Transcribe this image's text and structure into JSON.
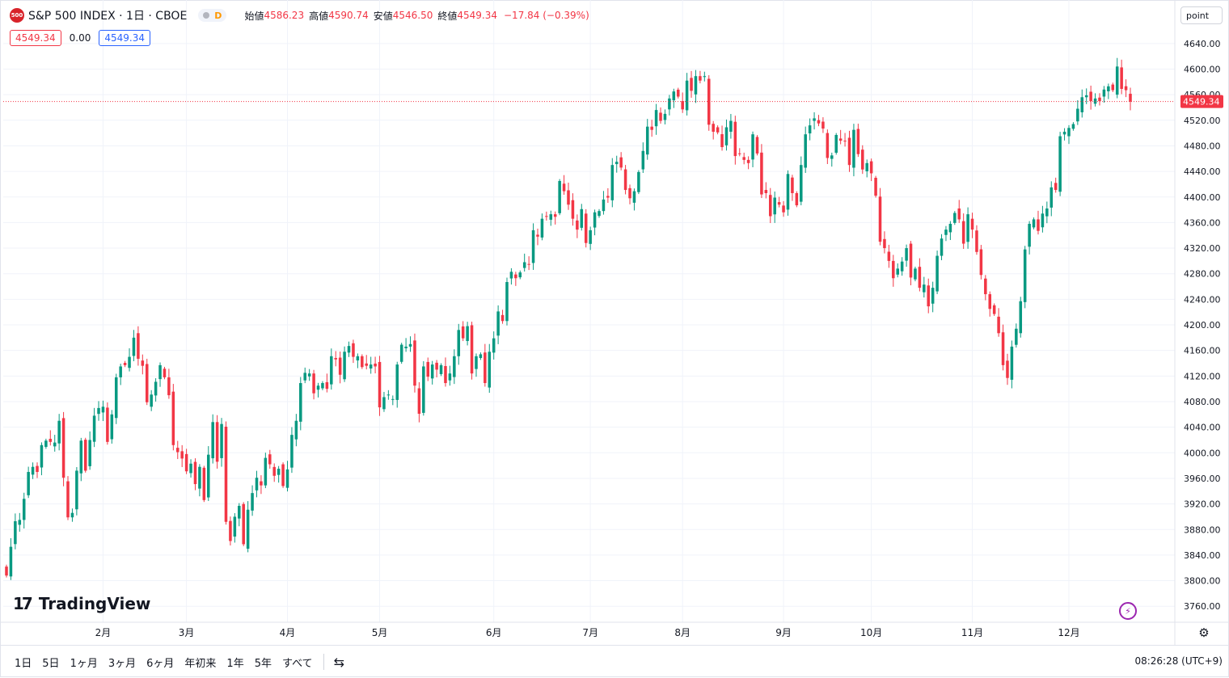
{
  "header": {
    "symbol_logo": "500",
    "symbol": "S&P 500 INDEX · 1日 · CBOE",
    "interval_badge": "D",
    "ohlc": [
      {
        "label": "始値",
        "value": "4586.23"
      },
      {
        "label": "高値",
        "value": "4590.74"
      },
      {
        "label": "安値",
        "value": "4546.50"
      },
      {
        "label": "終値",
        "value": "4549.34"
      }
    ],
    "change": "−17.84 (−0.39%)"
  },
  "price_row": {
    "bid": "4549.34",
    "spread": "0.00",
    "ask": "4549.34"
  },
  "scale_button": "point",
  "brand": "TradingView",
  "last_price_label": "4549.34",
  "bottom": {
    "ranges": [
      "1日",
      "5日",
      "1ヶ月",
      "3ヶ月",
      "6ヶ月",
      "年初来",
      "1年",
      "5年",
      "すべて"
    ],
    "clock": "08:26:28 (UTC+9)"
  },
  "colors": {
    "up": "#089981",
    "down": "#f23645",
    "grid": "#f0f3fa",
    "last_line": "#f23645"
  },
  "icons": {
    "bolt": "lightning-icon",
    "gear": "settings-icon",
    "calendar": "date-range-icon"
  },
  "chart_data": {
    "type": "candlestick",
    "x_axis_labels": [
      "2月",
      "3月",
      "4月",
      "5月",
      "6月",
      "7月",
      "8月",
      "9月",
      "10月",
      "11月",
      "12月"
    ],
    "y_ticks": [
      3760,
      3800,
      3840,
      3880,
      3920,
      3960,
      4000,
      4040,
      4080,
      4120,
      4160,
      4200,
      4240,
      4280,
      4320,
      4360,
      4400,
      4440,
      4480,
      4520,
      4560,
      4600,
      4640
    ],
    "ylim": [
      3735,
      4660
    ],
    "last_price": 4549.34,
    "closes": [
      3808,
      3853,
      3893,
      3895,
      3928,
      3970,
      3978,
      3970,
      4012,
      4019,
      4017,
      4016,
      4050,
      3961,
      3899,
      3906,
      3972,
      4019,
      3972,
      4020,
      4058,
      4070,
      4072,
      4017,
      4060,
      4118,
      4135,
      4137,
      4150,
      4180,
      4147,
      4136,
      4079,
      4091,
      4111,
      4137,
      4118,
      4090,
      4012,
      4001,
      3991,
      3971,
      3983,
      3951,
      3978,
      3926,
      3997,
      4048,
      3986,
      4045,
      3892,
      3862,
      3900,
      3917,
      3857,
      3911,
      3937,
      3961,
      3949,
      3992,
      3982,
      3964,
      3975,
      3948,
      3974,
      4028,
      4050,
      4109,
      4125,
      4124,
      4093,
      4105,
      4109,
      4100,
      4151,
      4146,
      4122,
      4158,
      4167,
      4150,
      4151,
      4134,
      4136,
      4138,
      4135,
      4071,
      4087,
      4091,
      4084,
      4138,
      4169,
      4166,
      4170,
      4105,
      4061,
      4135,
      4119,
      4138,
      4130,
      4137,
      4109,
      4124,
      4151,
      4192,
      4179,
      4198,
      4124,
      4151,
      4154,
      4109,
      4158,
      4179,
      4221,
      4206,
      4267,
      4283,
      4273,
      4282,
      4298,
      4294,
      4348,
      4338,
      4366,
      4370,
      4373,
      4369,
      4425,
      4409,
      4388,
      4366,
      4349,
      4381,
      4328,
      4348,
      4376,
      4378,
      4396,
      4399,
      4450,
      4455,
      4446,
      4411,
      4398,
      4409,
      4439,
      4472,
      4510,
      4505,
      4536,
      4519,
      4530,
      4554,
      4565,
      4557,
      4537,
      4582,
      4566,
      4589,
      4582,
      4589,
      4513,
      4502,
      4501,
      4478,
      4509,
      4519,
      4464,
      4468,
      4458,
      4453,
      4498,
      4468,
      4404,
      4406,
      4370,
      4399,
      4388,
      4376,
      4436,
      4406,
      4387,
      4450,
      4498,
      4512,
      4523,
      4515,
      4507,
      4461,
      4465,
      4497,
      4488,
      4487,
      4450,
      4505,
      4467,
      4443,
      4453,
      4437,
      4402,
      4330,
      4320,
      4300,
      4273,
      4288,
      4299,
      4320,
      4274,
      4288,
      4258,
      4263,
      4229,
      4258,
      4308,
      4335,
      4349,
      4358,
      4375,
      4365,
      4327,
      4373,
      4349,
      4314,
      4278,
      4248,
      4225,
      4217,
      4187,
      4137,
      4117,
      4166,
      4194,
      4237,
      4318,
      4358,
      4365,
      4347,
      4374,
      4382,
      4415,
      4411,
      4495,
      4502,
      4508,
      4514,
      4538,
      4556,
      4559,
      4550,
      4554,
      4550,
      4568,
      4573,
      4567,
      4604,
      4569,
      4567,
      4549
    ],
    "series": [
      {
        "name": "S&P 500 INDEX",
        "values_key": "closes"
      }
    ]
  }
}
